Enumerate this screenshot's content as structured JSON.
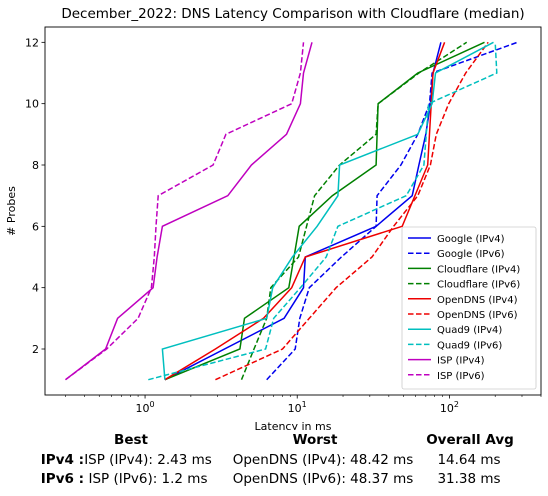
{
  "chart_data": {
    "type": "line",
    "title": "December_2022: DNS Latency Comparison with Cloudflare (median)",
    "xlabel": "Latency in ms",
    "ylabel": "# Probes",
    "xscale": "log",
    "xlim": [
      0.22,
      400
    ],
    "ylim": [
      0.5,
      12.5
    ],
    "yticks": [
      2,
      4,
      6,
      8,
      10,
      12
    ],
    "xticks": [
      {
        "value": 1,
        "base": "10",
        "exp": "0"
      },
      {
        "value": 10,
        "base": "10",
        "exp": "1"
      },
      {
        "value": 100,
        "base": "10",
        "exp": "2"
      }
    ],
    "grid": false,
    "legend_position": "lower-right",
    "series": [
      {
        "name": "Google (IPv4)",
        "color": "#0000ee",
        "dash": "solid",
        "points": [
          [
            1.35,
            1
          ],
          [
            8.2,
            3
          ],
          [
            11,
            4
          ],
          [
            11.3,
            5
          ],
          [
            33,
            6
          ],
          [
            57,
            7
          ],
          [
            63,
            8
          ],
          [
            70,
            9
          ],
          [
            75,
            10
          ],
          [
            78,
            11
          ],
          [
            88,
            12
          ]
        ]
      },
      {
        "name": "Google (IPv6)",
        "color": "#0000ee",
        "dash": "dashed",
        "points": [
          [
            6.3,
            1
          ],
          [
            9.7,
            2
          ],
          [
            10.4,
            3
          ],
          [
            12,
            4
          ],
          [
            19.5,
            5
          ],
          [
            33,
            6
          ],
          [
            33.5,
            7
          ],
          [
            48,
            8
          ],
          [
            62,
            9
          ],
          [
            74,
            10
          ],
          [
            77,
            11
          ],
          [
            280,
            12
          ]
        ]
      },
      {
        "name": "Cloudflare (IPv4)",
        "color": "#008000",
        "dash": "solid",
        "points": [
          [
            1.35,
            1
          ],
          [
            4.2,
            2
          ],
          [
            4.5,
            3
          ],
          [
            8.8,
            4
          ],
          [
            10.3,
            6
          ],
          [
            17,
            7
          ],
          [
            33,
            8
          ],
          [
            34,
            10
          ],
          [
            62,
            11
          ],
          [
            170,
            12
          ]
        ]
      },
      {
        "name": "Cloudflare (IPv6)",
        "color": "#008000",
        "dash": "dashed",
        "points": [
          [
            4.3,
            1
          ],
          [
            5.2,
            2
          ],
          [
            6.3,
            3
          ],
          [
            6.7,
            4
          ],
          [
            10.2,
            5
          ],
          [
            13,
            7
          ],
          [
            19,
            8
          ],
          [
            33,
            9
          ],
          [
            34,
            10
          ],
          [
            63,
            11
          ],
          [
            130,
            12
          ]
        ]
      },
      {
        "name": "OpenDNS (IPv4)",
        "color": "#ee0000",
        "dash": "solid",
        "points": [
          [
            1.35,
            1
          ],
          [
            2.9,
            2
          ],
          [
            6,
            3
          ],
          [
            9.2,
            4
          ],
          [
            11.3,
            5
          ],
          [
            49,
            6
          ],
          [
            72,
            8
          ],
          [
            78,
            11
          ],
          [
            93,
            12
          ]
        ]
      },
      {
        "name": "OpenDNS (IPv6)",
        "color": "#ee0000",
        "dash": "dashed",
        "points": [
          [
            2.9,
            1
          ],
          [
            8,
            2
          ],
          [
            12,
            3
          ],
          [
            18,
            4
          ],
          [
            31,
            5
          ],
          [
            43,
            6
          ],
          [
            62,
            7
          ],
          [
            75,
            8
          ],
          [
            82,
            9
          ],
          [
            99,
            10
          ],
          [
            128,
            11
          ],
          [
            180,
            12
          ]
        ]
      },
      {
        "name": "Quad9 (IPv4)",
        "color": "#00bfbf",
        "dash": "solid",
        "points": [
          [
            1.35,
            1
          ],
          [
            1.3,
            2
          ],
          [
            6.3,
            3
          ],
          [
            6.9,
            4
          ],
          [
            9.3,
            5
          ],
          [
            13.5,
            6
          ],
          [
            18.5,
            7
          ],
          [
            19,
            8
          ],
          [
            62,
            9
          ],
          [
            77,
            10
          ],
          [
            81,
            11
          ],
          [
            195,
            12
          ]
        ]
      },
      {
        "name": "Quad9 (IPv6)",
        "color": "#00bfbf",
        "dash": "dashed",
        "points": [
          [
            1.05,
            1
          ],
          [
            6.2,
            2
          ],
          [
            7,
            3
          ],
          [
            10.5,
            4
          ],
          [
            15.5,
            5
          ],
          [
            18.5,
            6
          ],
          [
            52,
            7
          ],
          [
            68,
            8
          ],
          [
            73,
            10
          ],
          [
            205,
            11
          ],
          [
            200,
            12
          ]
        ]
      },
      {
        "name": "ISP (IPv4)",
        "color": "#bf00bf",
        "dash": "solid",
        "points": [
          [
            0.3,
            1
          ],
          [
            0.55,
            2
          ],
          [
            0.66,
            3
          ],
          [
            1.13,
            4
          ],
          [
            1.2,
            5
          ],
          [
            1.3,
            6
          ],
          [
            3.5,
            7
          ],
          [
            5,
            8
          ],
          [
            8.5,
            9
          ],
          [
            10.5,
            10
          ],
          [
            11,
            11
          ],
          [
            12.5,
            12
          ]
        ]
      },
      {
        "name": "ISP (IPv6)",
        "color": "#bf00bf",
        "dash": "dashed",
        "points": [
          [
            0.3,
            1
          ],
          [
            0.56,
            2
          ],
          [
            0.9,
            3
          ],
          [
            1.1,
            4
          ],
          [
            1.15,
            5
          ],
          [
            1.18,
            6
          ],
          [
            1.22,
            7
          ],
          [
            2.8,
            8
          ],
          [
            3.4,
            9
          ],
          [
            9.2,
            10
          ],
          [
            10.5,
            11
          ],
          [
            11,
            12
          ]
        ]
      }
    ]
  },
  "summary": {
    "headers": {
      "best": "Best",
      "worst": "Worst",
      "avg": "Overall Avg"
    },
    "rows": [
      {
        "label": "IPv4 :",
        "best": "ISP (IPv4): 2.43 ms",
        "worst": "OpenDNS (IPv4): 48.42 ms",
        "avg": "14.64 ms"
      },
      {
        "label": "IPv6 :",
        "best": "ISP (IPv6): 1.2 ms",
        "worst": "OpenDNS (IPv6): 48.37 ms",
        "avg": "31.38 ms"
      }
    ]
  }
}
